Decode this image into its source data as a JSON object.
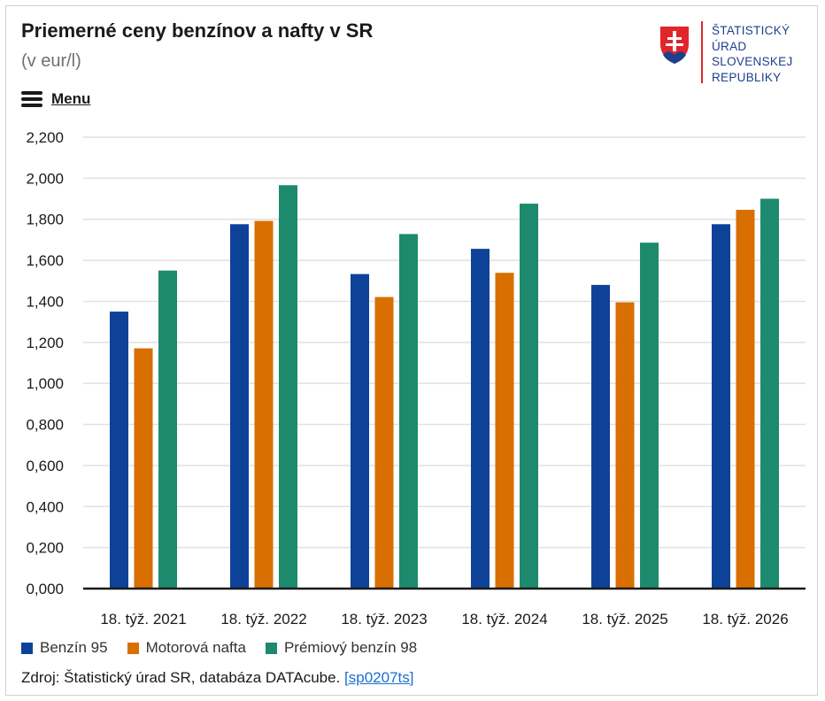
{
  "header": {
    "title": "Priemerné ceny benzínov a nafty v SR",
    "subtitle": "(v eur/l)"
  },
  "menu": {
    "label": "Menu",
    "icon": "hamburger-icon"
  },
  "logo": {
    "lines": [
      "ŠTATISTICKÝ",
      "ÚRAD",
      "SLOVENSKEJ",
      "REPUBLIKY"
    ],
    "icon": "slovak-coat-of-arms-icon"
  },
  "colors": {
    "benzin95": "#0e4299",
    "nafta": "#d86f00",
    "premiovy": "#1d8a6e",
    "grid": "#e1e1e1",
    "axis": "#1a1a1a"
  },
  "source": {
    "text": "Zdroj: Štatistický úrad SR, databáza DATAcube.",
    "link": "[sp0207ts]"
  },
  "chart_data": {
    "type": "bar",
    "categories": [
      "18. týž. 2021",
      "18. týž. 2022",
      "18. týž. 2023",
      "18. týž. 2024",
      "18. týž. 2025",
      "18. týž. 2026"
    ],
    "series": [
      {
        "name": "Benzín 95",
        "color": "#0e4299",
        "values": [
          1.35,
          1.776,
          1.533,
          1.656,
          1.48,
          1.776
        ]
      },
      {
        "name": "Motorová nafta",
        "color": "#d86f00",
        "values": [
          1.171,
          1.792,
          1.421,
          1.539,
          1.395,
          1.846
        ]
      },
      {
        "name": "Prémiový benzín 98",
        "color": "#1d8a6e",
        "values": [
          1.55,
          1.966,
          1.728,
          1.876,
          1.686,
          1.9
        ]
      }
    ],
    "ylim": [
      0,
      2.2
    ],
    "yticks": [
      0,
      0.2,
      0.4,
      0.6,
      0.8,
      1.0,
      1.2,
      1.4,
      1.6,
      1.8,
      2.0,
      2.2
    ],
    "ytick_labels": [
      "0,000",
      "0,200",
      "0,400",
      "0,600",
      "0,800",
      "1,000",
      "1,200",
      "1,400",
      "1,600",
      "1,800",
      "2,000",
      "2,200"
    ],
    "grid": true,
    "legend": "bottom-left"
  }
}
